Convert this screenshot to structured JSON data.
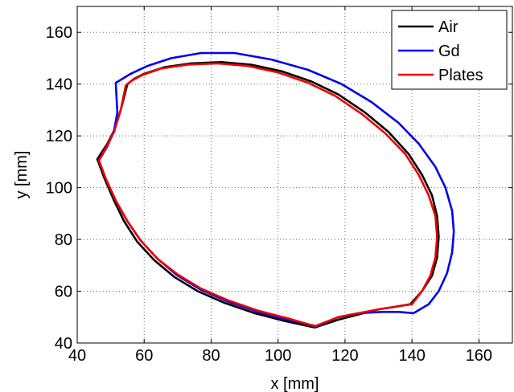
{
  "chart_data": {
    "type": "line",
    "title": "",
    "xlabel": "x [mm]",
    "ylabel": "y [mm]",
    "xlim": [
      40,
      170
    ],
    "ylim": [
      40,
      170
    ],
    "xticks": [
      40,
      60,
      80,
      100,
      120,
      140,
      160
    ],
    "yticks": [
      40,
      60,
      80,
      100,
      120,
      140,
      160
    ],
    "x_tick_labels": [
      "40",
      "60",
      "80",
      "100",
      "120",
      "140",
      "160"
    ],
    "y_tick_labels": [
      "40",
      "60",
      "80",
      "100",
      "120",
      "140",
      "160"
    ],
    "grid": true,
    "grid_style": "dotted",
    "legend_position": "top-right",
    "series": [
      {
        "name": "Air",
        "color": "#000000",
        "points": [
          [
            46.0,
            111.0
          ],
          [
            48.0,
            104.0
          ],
          [
            51.0,
            95.0
          ],
          [
            54.0,
            87.0
          ],
          [
            58.0,
            79.0
          ],
          [
            63.0,
            72.0
          ],
          [
            69.0,
            65.5
          ],
          [
            76.0,
            60.0
          ],
          [
            84.0,
            55.5
          ],
          [
            93.0,
            51.5
          ],
          [
            102.0,
            48.5
          ],
          [
            111.0,
            46.0
          ],
          [
            118.0,
            49.0
          ],
          [
            124.0,
            51.0
          ],
          [
            130.0,
            53.0
          ],
          [
            135.0,
            54.0
          ],
          [
            139.5,
            55.0
          ],
          [
            143.0,
            60.0
          ],
          [
            146.0,
            66.0
          ],
          [
            147.5,
            73.0
          ],
          [
            148.0,
            81.0
          ],
          [
            147.5,
            89.0
          ],
          [
            146.0,
            97.0
          ],
          [
            143.0,
            105.0
          ],
          [
            139.0,
            113.0
          ],
          [
            133.0,
            121.5
          ],
          [
            126.0,
            129.0
          ],
          [
            118.0,
            136.0
          ],
          [
            110.0,
            141.0
          ],
          [
            101.0,
            145.0
          ],
          [
            92.0,
            147.5
          ],
          [
            83.0,
            148.5
          ],
          [
            74.0,
            148.0
          ],
          [
            66.0,
            146.5
          ],
          [
            60.0,
            144.0
          ],
          [
            57.0,
            142.0
          ],
          [
            55.0,
            140.0
          ],
          [
            53.0,
            130.0
          ],
          [
            51.0,
            122.0
          ],
          [
            49.0,
            117.0
          ],
          [
            46.0,
            111.0
          ]
        ]
      },
      {
        "name": "Gd",
        "color": "#0000ee",
        "points": [
          [
            46.5,
            110.5
          ],
          [
            48.5,
            103.5
          ],
          [
            51.5,
            95.0
          ],
          [
            55.0,
            87.0
          ],
          [
            59.0,
            79.5
          ],
          [
            64.0,
            72.5
          ],
          [
            70.0,
            66.0
          ],
          [
            77.0,
            60.5
          ],
          [
            85.0,
            56.0
          ],
          [
            94.0,
            52.0
          ],
          [
            103.0,
            49.0
          ],
          [
            111.5,
            46.5
          ],
          [
            118.0,
            50.0
          ],
          [
            124.0,
            51.5
          ],
          [
            131.0,
            52.0
          ],
          [
            136.0,
            52.0
          ],
          [
            140.5,
            51.5
          ],
          [
            145.0,
            55.0
          ],
          [
            148.0,
            60.0
          ],
          [
            150.5,
            67.0
          ],
          [
            152.0,
            75.0
          ],
          [
            152.5,
            83.0
          ],
          [
            152.0,
            91.0
          ],
          [
            150.0,
            100.0
          ],
          [
            147.0,
            108.0
          ],
          [
            142.0,
            117.0
          ],
          [
            136.0,
            125.0
          ],
          [
            128.0,
            133.0
          ],
          [
            119.0,
            140.0
          ],
          [
            109.0,
            145.5
          ],
          [
            98.0,
            149.5
          ],
          [
            87.0,
            152.0
          ],
          [
            77.0,
            152.0
          ],
          [
            68.0,
            150.0
          ],
          [
            61.0,
            147.0
          ],
          [
            56.0,
            144.0
          ],
          [
            51.5,
            140.5
          ],
          [
            52.0,
            129.0
          ],
          [
            51.0,
            122.0
          ],
          [
            49.0,
            116.0
          ],
          [
            46.5,
            110.5
          ]
        ]
      },
      {
        "name": "Plates",
        "color": "#ee0000",
        "points": [
          [
            46.5,
            110.5
          ],
          [
            48.5,
            103.5
          ],
          [
            51.5,
            95.0
          ],
          [
            55.0,
            87.0
          ],
          [
            59.0,
            79.5
          ],
          [
            64.0,
            72.5
          ],
          [
            70.0,
            66.5
          ],
          [
            77.0,
            61.0
          ],
          [
            85.0,
            56.5
          ],
          [
            94.0,
            52.5
          ],
          [
            103.0,
            49.5
          ],
          [
            111.0,
            46.5
          ],
          [
            118.0,
            50.0
          ],
          [
            124.0,
            51.5
          ],
          [
            130.0,
            53.0
          ],
          [
            135.0,
            54.0
          ],
          [
            140.0,
            55.0
          ],
          [
            143.0,
            60.0
          ],
          [
            145.5,
            66.0
          ],
          [
            147.0,
            73.0
          ],
          [
            147.5,
            81.0
          ],
          [
            147.0,
            89.0
          ],
          [
            145.0,
            97.0
          ],
          [
            142.0,
            105.0
          ],
          [
            138.0,
            113.0
          ],
          [
            132.0,
            121.0
          ],
          [
            125.0,
            128.5
          ],
          [
            117.0,
            135.5
          ],
          [
            109.0,
            140.5
          ],
          [
            100.0,
            144.5
          ],
          [
            91.0,
            147.0
          ],
          [
            82.0,
            148.0
          ],
          [
            73.0,
            147.5
          ],
          [
            65.0,
            146.0
          ],
          [
            59.5,
            143.5
          ],
          [
            56.5,
            141.5
          ],
          [
            54.5,
            139.5
          ],
          [
            53.0,
            130.0
          ],
          [
            51.0,
            121.5
          ],
          [
            49.0,
            116.5
          ],
          [
            46.5,
            110.5
          ]
        ]
      }
    ]
  }
}
